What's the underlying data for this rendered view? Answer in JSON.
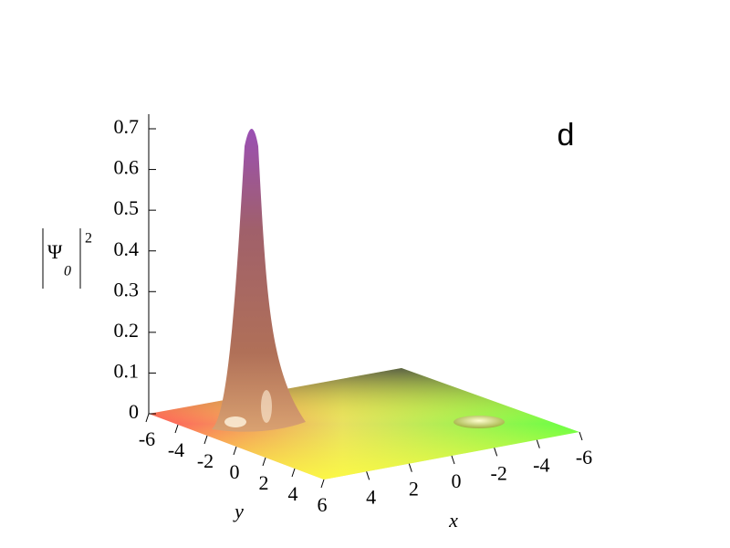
{
  "chart_data": {
    "type": "surface",
    "annotation": "d",
    "xlabel": "x",
    "ylabel": "y",
    "zlabel": {
      "base": "Ψ",
      "sub": "0",
      "sup": "2"
    },
    "xlim": [
      -6,
      6
    ],
    "xticks": [
      -6,
      -4,
      -2,
      0,
      2,
      4
    ],
    "ylim": [
      -6,
      6
    ],
    "yticks": [
      -6,
      -4,
      -2,
      0,
      2,
      4,
      6
    ],
    "zlim": [
      0,
      0.7
    ],
    "zticks": [
      0,
      0.1,
      0.2,
      0.3,
      0.4,
      0.5,
      0.6,
      0.7
    ]
  }
}
